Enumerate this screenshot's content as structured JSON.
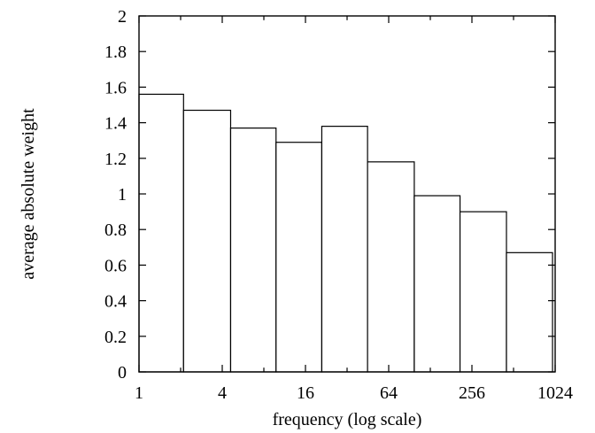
{
  "chart_data": {
    "type": "bar",
    "title": "",
    "xlabel": "frequency (log scale)",
    "ylabel": "average absolute weight",
    "x_scale": "log2",
    "xlim": [
      1,
      1024
    ],
    "ylim": [
      0,
      2
    ],
    "grid": false,
    "legend": "none",
    "x_ticks": [
      "1",
      "4",
      "16",
      "64",
      "256",
      "1024"
    ],
    "y_ticks": [
      "0",
      "0.2",
      "0.4",
      "0.6",
      "0.8",
      "1",
      "1.2",
      "1.4",
      "1.6",
      "1.8",
      "2"
    ],
    "bins": [
      {
        "x_start": 1,
        "x_end": 2.1,
        "value": 1.56
      },
      {
        "x_start": 2.1,
        "x_end": 4.6,
        "value": 1.47
      },
      {
        "x_start": 4.6,
        "x_end": 9.8,
        "value": 1.37
      },
      {
        "x_start": 9.8,
        "x_end": 21,
        "value": 1.29
      },
      {
        "x_start": 21,
        "x_end": 45,
        "value": 1.38
      },
      {
        "x_start": 45,
        "x_end": 98,
        "value": 1.18
      },
      {
        "x_start": 98,
        "x_end": 210,
        "value": 0.99
      },
      {
        "x_start": 210,
        "x_end": 455,
        "value": 0.9
      },
      {
        "x_start": 455,
        "x_end": 980,
        "value": 0.67
      }
    ]
  }
}
